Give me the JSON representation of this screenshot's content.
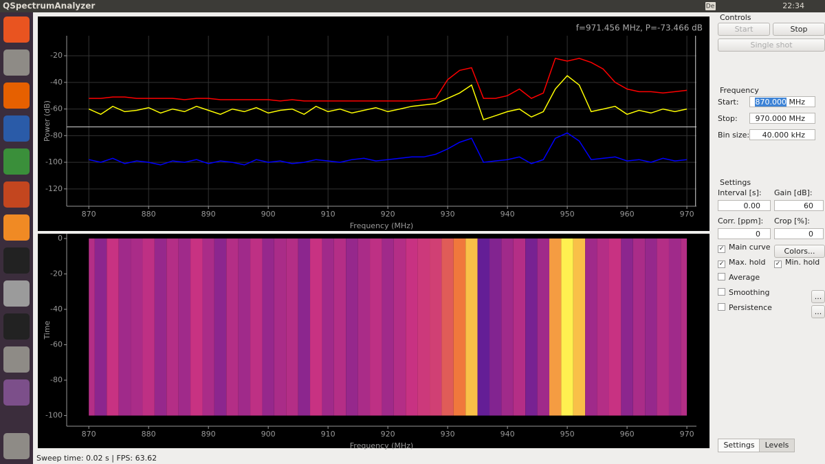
{
  "window": {
    "title": "QSpectrumAnalyzer",
    "keyboard": "De",
    "time": "22:34",
    "status": "Sweep time: 0.02 s | FPS: 63.62"
  },
  "controls": {
    "title": "Controls",
    "start": "Start",
    "stop": "Stop",
    "single_shot": "Single shot"
  },
  "frequency": {
    "title": "Frequency",
    "start_label": "Start:",
    "start_value": "870.000",
    "start_unit": "MHz",
    "stop_label": "Stop:",
    "stop_value": "970.000",
    "stop_unit": "MHz",
    "bin_label": "Bin size:",
    "bin_value": "40.000",
    "bin_unit": "kHz"
  },
  "settings": {
    "title": "Settings",
    "interval_label": "Interval [s]:",
    "interval": "0.00",
    "gain_label": "Gain [dB]:",
    "gain": "60",
    "corr_label": "Corr. [ppm]:",
    "corr": "0",
    "crop_label": "Crop [%]:",
    "crop": "0",
    "checkboxes": [
      {
        "label": "Main curve",
        "checked": true
      },
      {
        "label": "Max. hold",
        "checked": true
      },
      {
        "label": "Min. hold",
        "checked": true
      },
      {
        "label": "Average",
        "checked": false
      },
      {
        "label": "Smoothing",
        "checked": false
      },
      {
        "label": "Persistence",
        "checked": false
      }
    ],
    "colors_button": "Colors...",
    "more_button": "..."
  },
  "tabs": [
    "Settings",
    "Levels"
  ],
  "chart_data": [
    {
      "type": "line",
      "ylabel": "Power (dB)",
      "xlabel": "Frequency (MHz)",
      "cursor": {
        "x": 971.456,
        "y": -73.466,
        "label": "f=971.456 MHz, P=-73.466 dB"
      },
      "xlim": [
        866.3,
        971.6
      ],
      "ylim": [
        -133,
        -5
      ],
      "xticks": [
        870,
        880,
        890,
        900,
        910,
        920,
        930,
        940,
        950,
        960,
        970
      ],
      "yticks": [
        -120,
        -100,
        -80,
        -60,
        -40,
        -20
      ],
      "grid": true,
      "x": [
        870,
        872,
        874,
        876,
        878,
        880,
        882,
        884,
        886,
        888,
        890,
        892,
        894,
        896,
        898,
        900,
        902,
        904,
        906,
        908,
        910,
        912,
        914,
        916,
        918,
        920,
        922,
        924,
        926,
        928,
        930,
        932,
        934,
        936,
        938,
        940,
        942,
        944,
        946,
        948,
        950,
        952,
        954,
        956,
        958,
        960,
        962,
        964,
        966,
        968,
        970
      ],
      "series": [
        {
          "color": "#ff0000",
          "values": [
            -52,
            -52,
            -51,
            -51,
            -52,
            -52,
            -52,
            -52,
            -53,
            -52,
            -52,
            -53,
            -53,
            -53,
            -53,
            -53,
            -54,
            -53,
            -54,
            -54,
            -54,
            -54,
            -54,
            -54,
            -54,
            -54,
            -54,
            -54,
            -53,
            -52,
            -38,
            -31,
            -29,
            -52,
            -52,
            -50,
            -45,
            -52,
            -48,
            -22,
            -24,
            -22,
            -25,
            -30,
            -40,
            -45,
            -47,
            -47,
            -48,
            -47,
            -46
          ]
        },
        {
          "color": "#ffff00",
          "values": [
            -60,
            -64,
            -58,
            -62,
            -61,
            -59,
            -63,
            -60,
            -62,
            -58,
            -61,
            -64,
            -60,
            -62,
            -59,
            -63,
            -61,
            -60,
            -64,
            -58,
            -62,
            -60,
            -63,
            -61,
            -59,
            -62,
            -60,
            -58,
            -57,
            -56,
            -52,
            -48,
            -42,
            -68,
            -65,
            -62,
            -60,
            -66,
            -62,
            -45,
            -35,
            -42,
            -62,
            -60,
            -58,
            -64,
            -61,
            -63,
            -60,
            -62,
            -60
          ]
        },
        {
          "color": "#0000ff",
          "values": [
            -98,
            -100,
            -97,
            -101,
            -99,
            -100,
            -102,
            -99,
            -100,
            -98,
            -101,
            -99,
            -100,
            -102,
            -98,
            -100,
            -99,
            -101,
            -100,
            -98,
            -99,
            -100,
            -98,
            -97,
            -99,
            -98,
            -97,
            -96,
            -96,
            -94,
            -90,
            -85,
            -82,
            -100,
            -99,
            -98,
            -96,
            -101,
            -98,
            -82,
            -78,
            -84,
            -98,
            -97,
            -96,
            -99,
            -98,
            -100,
            -97,
            -99,
            -98
          ]
        }
      ]
    },
    {
      "type": "heatmap",
      "ylabel": "Time",
      "xlabel": "Frequency (MHz)",
      "xlim": [
        866.3,
        971.6
      ],
      "ylim": [
        -106,
        2.7
      ],
      "xticks": [
        870,
        880,
        890,
        900,
        910,
        920,
        930,
        940,
        950,
        960,
        970
      ],
      "yticks": [
        -100,
        -80,
        -60,
        -40,
        -20,
        0
      ]
    }
  ]
}
